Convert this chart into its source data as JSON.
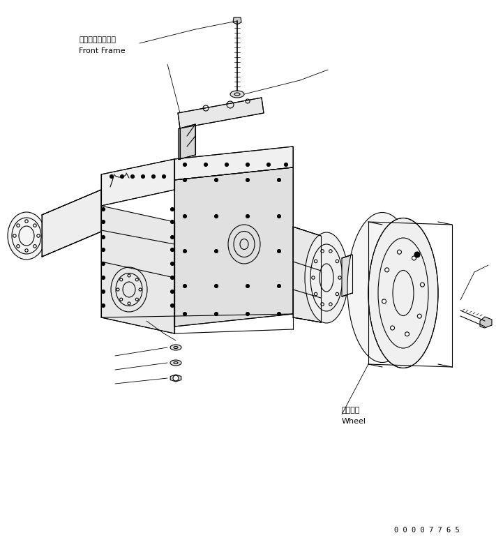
{
  "background_color": "#ffffff",
  "part_number": "0 0 0 0 7 7 6 5",
  "label_front_frame_jp": "フロントフレーム",
  "label_front_frame_en": "Front Frame",
  "label_wheel_jp": "ホイール",
  "label_wheel_en": "Wheel",
  "line_color": "#000000",
  "line_width": 0.8,
  "fig_width": 7.11,
  "fig_height": 7.74
}
